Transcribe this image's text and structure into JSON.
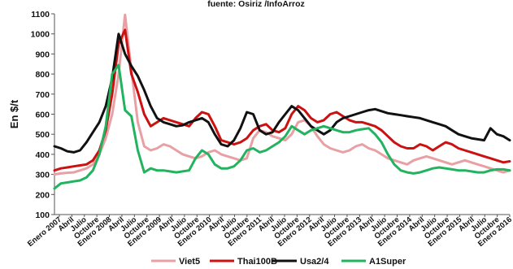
{
  "chart_data": {
    "type": "line",
    "title": "fuente: Osiriz /InfoArroz",
    "xlabel": "",
    "ylabel": "En $/t",
    "ylim": [
      100,
      1100
    ],
    "yticks": [
      100,
      200,
      300,
      400,
      500,
      600,
      700,
      800,
      900,
      1000,
      1100
    ],
    "grid": false,
    "legend_position": "bottom",
    "x_tick_labels": [
      "Enero 2007",
      "Abril",
      "Julio",
      "Octubre",
      "Enero 2008",
      "Abril",
      "Julio",
      "Octubre",
      "Enero 2009",
      "Abril",
      "Julio",
      "Octubre",
      "Enero 2010",
      "Abril",
      "Julio",
      "Octubre",
      "Enero 2011",
      "Abril",
      "Julio",
      "Octubre",
      "Enero 2012",
      "Abril",
      "Julio",
      "Octubre",
      "Enero 2013",
      "Abril",
      "Julio",
      "Octubre",
      "Enero 2014",
      "Abril",
      "Julio",
      "Octubre",
      "Enero 2015",
      "Abril",
      "Julio",
      "Octubre",
      "Enero 2016"
    ],
    "series": [
      {
        "name": "Viet5",
        "color": "#e8a0a4",
        "values": [
          300,
          305,
          308,
          310,
          320,
          330,
          350,
          400,
          480,
          600,
          800,
          1095,
          820,
          560,
          440,
          420,
          430,
          450,
          440,
          420,
          400,
          390,
          380,
          390,
          410,
          420,
          400,
          390,
          380,
          370,
          380,
          480,
          520,
          510,
          490,
          480,
          470,
          500,
          560,
          570,
          540,
          490,
          450,
          430,
          420,
          410,
          420,
          440,
          450,
          430,
          420,
          400,
          380,
          370,
          360,
          350,
          370,
          380,
          390,
          380,
          370,
          360,
          350,
          360,
          370,
          360,
          350,
          340,
          330,
          320,
          310,
          320
        ]
      },
      {
        "name": "Thai100B",
        "color": "#cc1111",
        "values": [
          320,
          330,
          335,
          340,
          345,
          350,
          370,
          420,
          520,
          700,
          950,
          1020,
          800,
          710,
          600,
          540,
          560,
          580,
          570,
          560,
          550,
          540,
          580,
          610,
          600,
          540,
          470,
          460,
          450,
          460,
          480,
          520,
          540,
          550,
          520,
          510,
          530,
          600,
          640,
          620,
          580,
          560,
          570,
          600,
          610,
          590,
          570,
          560,
          560,
          550,
          540,
          520,
          490,
          460,
          440,
          430,
          430,
          450,
          440,
          420,
          440,
          460,
          450,
          430,
          420,
          410,
          400,
          390,
          380,
          370,
          360,
          365
        ]
      },
      {
        "name": "Usa2/4",
        "color": "#111111",
        "values": [
          440,
          430,
          415,
          410,
          420,
          460,
          510,
          560,
          640,
          780,
          1000,
          900,
          840,
          790,
          720,
          640,
          580,
          560,
          550,
          540,
          545,
          560,
          570,
          580,
          560,
          500,
          450,
          440,
          470,
          530,
          610,
          600,
          520,
          500,
          510,
          560,
          600,
          640,
          620,
          580,
          540,
          520,
          500,
          520,
          560,
          580,
          590,
          600,
          610,
          620,
          625,
          615,
          605,
          600,
          595,
          590,
          585,
          580,
          570,
          560,
          550,
          540,
          520,
          500,
          490,
          480,
          475,
          470,
          530,
          500,
          490,
          470
        ]
      },
      {
        "name": "A1Super",
        "color": "#22b35e",
        "values": [
          230,
          255,
          260,
          265,
          270,
          285,
          320,
          400,
          540,
          800,
          845,
          620,
          590,
          420,
          310,
          330,
          320,
          320,
          315,
          310,
          315,
          320,
          380,
          420,
          400,
          350,
          330,
          330,
          340,
          370,
          420,
          430,
          410,
          420,
          440,
          460,
          490,
          540,
          520,
          500,
          520,
          530,
          540,
          530,
          520,
          510,
          510,
          520,
          525,
          530,
          500,
          460,
          400,
          350,
          320,
          310,
          305,
          310,
          320,
          330,
          335,
          330,
          325,
          320,
          320,
          315,
          310,
          310,
          320,
          325,
          325,
          320
        ]
      }
    ]
  }
}
